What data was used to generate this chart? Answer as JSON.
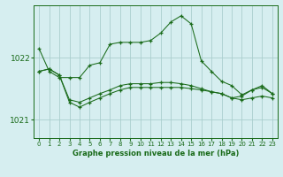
{
  "x": [
    0,
    1,
    2,
    3,
    4,
    5,
    6,
    7,
    8,
    9,
    10,
    11,
    12,
    13,
    14,
    15,
    16,
    17,
    18,
    19,
    20,
    21,
    22,
    23
  ],
  "line1": [
    1022.15,
    1021.78,
    1021.68,
    1021.68,
    1021.68,
    1021.88,
    1021.92,
    1022.22,
    1022.25,
    1022.25,
    1022.25,
    1022.28,
    1022.4,
    1022.58,
    1022.68,
    1022.55,
    1021.95,
    1021.78,
    1021.62,
    1021.55,
    1021.4,
    1021.48,
    1021.52,
    1021.42
  ],
  "line2": [
    1021.78,
    1021.82,
    1021.72,
    1021.32,
    1021.28,
    1021.35,
    1021.42,
    1021.48,
    1021.55,
    1021.58,
    1021.58,
    1021.58,
    1021.6,
    1021.6,
    1021.58,
    1021.55,
    1021.5,
    1021.45,
    1021.42,
    1021.35,
    1021.38,
    1021.48,
    1021.55,
    1021.42
  ],
  "line3": [
    1021.78,
    1021.82,
    1021.72,
    1021.28,
    1021.2,
    1021.28,
    1021.35,
    1021.42,
    1021.48,
    1021.52,
    1021.52,
    1021.52,
    1021.52,
    1021.52,
    1021.52,
    1021.5,
    1021.48,
    1021.45,
    1021.42,
    1021.35,
    1021.32,
    1021.35,
    1021.38,
    1021.35
  ],
  "line_color": "#1a6b1a",
  "bg_color": "#d6eef0",
  "grid_color": "#aacece",
  "yticks": [
    1021,
    1022
  ],
  "ylim": [
    1020.7,
    1022.85
  ],
  "xlim": [
    -0.5,
    23.5
  ],
  "xlabel": "Graphe pression niveau de la mer (hPa)",
  "figsize": [
    3.2,
    2.0
  ],
  "dpi": 100
}
